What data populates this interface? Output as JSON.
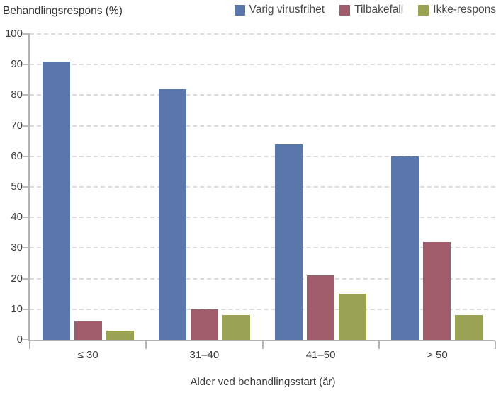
{
  "header": {
    "title": "Behandlingsrespons (%)"
  },
  "chart_data": {
    "type": "bar",
    "title": "Behandlingsrespons (%)",
    "categories": [
      "≤ 30",
      "31–40",
      "41–50",
      "> 50"
    ],
    "series": [
      {
        "name": "Varig virusfrihet",
        "color": "#5b76ab",
        "values": [
          91,
          82,
          64,
          60
        ]
      },
      {
        "name": "Tilbakefall",
        "color": "#a15c6c",
        "values": [
          6,
          10,
          21,
          32
        ]
      },
      {
        "name": "Ikke-respons",
        "color": "#9aa354",
        "values": [
          3,
          8,
          15,
          8
        ]
      }
    ],
    "xlabel": "Alder ved behandlingsstart (år)",
    "ylabel": "Behandlingsrespons (%)",
    "ylim": [
      0,
      100
    ],
    "ytick_step": 10,
    "grid": "horizontal-dashed",
    "legend_position": "top-right"
  },
  "colors": {
    "background": "#ffffff",
    "axis": "#b5b5b5",
    "gridline": "#dcdcdc",
    "text": "#3d3d3d"
  }
}
